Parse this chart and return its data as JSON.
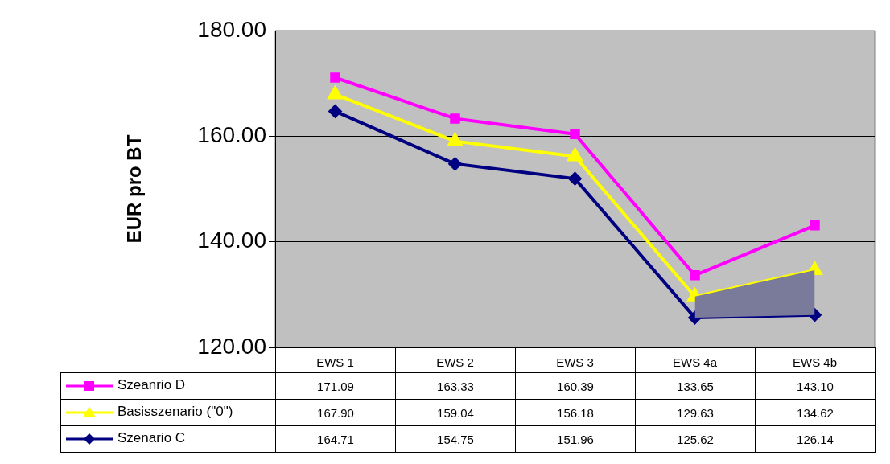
{
  "chart_data": {
    "type": "line",
    "ylabel": "EUR pro BT",
    "categories": [
      "EWS 1",
      "EWS 2",
      "EWS 3",
      "EWS 4a",
      "EWS 4b"
    ],
    "series": [
      {
        "name": "Szeanrio D",
        "color": "#ff00ff",
        "marker": "square",
        "values": [
          171.09,
          163.33,
          160.39,
          133.65,
          143.1
        ],
        "value_labels": [
          "171.09",
          "163.33",
          "160.39",
          "133.65",
          "143.10"
        ]
      },
      {
        "name": "Basisszenario (\"0\")",
        "color": "#ffff00",
        "marker": "triangle",
        "values": [
          167.9,
          159.04,
          156.18,
          129.63,
          134.62
        ],
        "value_labels": [
          "167.90",
          "159.04",
          "156.18",
          "129.63",
          "134.62"
        ]
      },
      {
        "name": "Szenario C",
        "color": "#000080",
        "marker": "diamond",
        "values": [
          164.71,
          154.75,
          151.96,
          125.62,
          126.14
        ],
        "value_labels": [
          "164.71",
          "154.75",
          "151.96",
          "125.62",
          "126.14"
        ],
        "lower": [
          null,
          null,
          null,
          125.62,
          126.14
        ],
        "upper": [
          null,
          null,
          null,
          129.63,
          134.62
        ]
      }
    ],
    "ylim": [
      120,
      180
    ],
    "yticks": [
      {
        "value": 120,
        "label": "120.00"
      },
      {
        "value": 140,
        "label": "140.00"
      },
      {
        "value": 160,
        "label": "160.00"
      },
      {
        "value": 180,
        "label": "180.00"
      }
    ],
    "grid": "y",
    "legend": "bottom"
  }
}
